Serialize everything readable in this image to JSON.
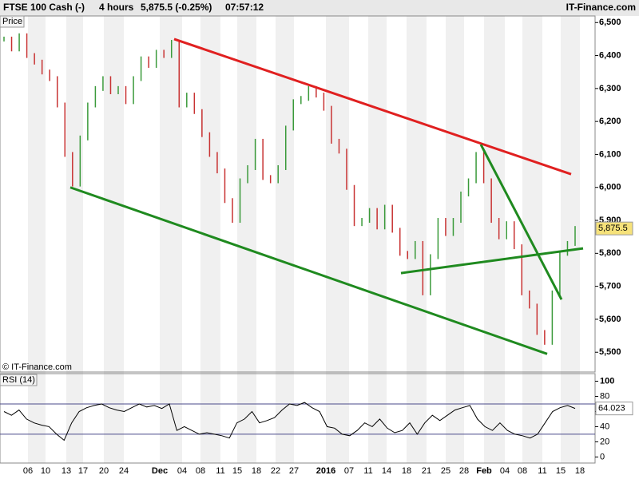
{
  "header": {
    "instrument": "FTSE 100 Cash (-)",
    "period": "4 hours",
    "quote": "5,875.5 (-0.25%)",
    "time": "07:57:12",
    "site": "IT-Finance.com"
  },
  "chart_data": [
    {
      "type": "bar",
      "title": "Price",
      "copyright": "© IT-Finance.com",
      "values": [
        6450,
        6420,
        6460,
        6400,
        6380,
        6350,
        6330,
        6250,
        6100,
        6010,
        6150,
        6250,
        6300,
        6330,
        6290,
        6300,
        6260,
        6330,
        6390,
        6370,
        6410,
        6400,
        6440,
        6250,
        6280,
        6230,
        6160,
        6100,
        6050,
        5960,
        5900,
        6020,
        6060,
        6140,
        6030,
        6020,
        6060,
        6180,
        6260,
        6270,
        6300,
        6280,
        6240,
        6140,
        6110,
        6000,
        5890,
        5900,
        5930,
        5880,
        5940,
        5870,
        5800,
        5790,
        5830,
        5680,
        5790,
        5900,
        5860,
        5900,
        5980,
        6020,
        6100,
        6020,
        5900,
        5850,
        5890,
        5820,
        5680,
        5640,
        5560,
        5530,
        5680,
        5800,
        5830,
        5875.5
      ],
      "up_color": "#3a9a3a",
      "down_color": "#c83232",
      "last": {
        "value": 5875.5,
        "label": "5,875.5"
      },
      "ylim": [
        5440,
        6520
      ],
      "yticks": [
        {
          "value": 5500,
          "label": "5,500"
        },
        {
          "value": 5600,
          "label": "5,600"
        },
        {
          "value": 5700,
          "label": "5,700"
        },
        {
          "value": 5800,
          "label": "5,800"
        },
        {
          "value": 5900,
          "label": "5,900"
        },
        {
          "value": 6000,
          "label": "6,000"
        },
        {
          "value": 6100,
          "label": "6,100"
        },
        {
          "value": 6200,
          "label": "6,200"
        },
        {
          "value": 6300,
          "label": "6,300"
        },
        {
          "value": 6400,
          "label": "6,400"
        },
        {
          "value": 6500,
          "label": "6,500"
        }
      ],
      "trendlines": [
        {
          "color": "#e02020",
          "values": [
            6450,
            6040
          ]
        },
        {
          "color": "#1f8a1f",
          "values": [
            6000,
            5495
          ]
        },
        {
          "color": "#1f8a1f",
          "values": [
            5740,
            5815
          ]
        },
        {
          "color": "#1f8a1f",
          "values": [
            6130,
            5660
          ]
        }
      ],
      "x_labels": [
        "06",
        "10",
        "13",
        "17",
        "20",
        "24",
        "Dec",
        "04",
        "08",
        "11",
        "15",
        "18",
        "22",
        "27",
        "2016",
        "07",
        "11",
        "14",
        "18",
        "21",
        "25",
        "28",
        "Feb",
        "04",
        "08",
        "11",
        "15",
        "18"
      ]
    },
    {
      "type": "line",
      "title": "RSI (14)",
      "color": "#000000",
      "values": [
        60,
        55,
        62,
        50,
        45,
        42,
        40,
        30,
        22,
        45,
        60,
        65,
        68,
        70,
        65,
        62,
        60,
        65,
        70,
        66,
        68,
        64,
        70,
        35,
        40,
        35,
        30,
        32,
        30,
        28,
        25,
        45,
        50,
        60,
        45,
        48,
        52,
        62,
        70,
        68,
        72,
        65,
        60,
        40,
        38,
        30,
        28,
        35,
        45,
        40,
        50,
        38,
        32,
        35,
        45,
        30,
        45,
        55,
        48,
        55,
        62,
        65,
        68,
        50,
        40,
        35,
        45,
        35,
        30,
        28,
        25,
        30,
        45,
        60,
        65,
        68,
        64.023
      ],
      "last": 64.023,
      "levels": [
        30,
        70
      ],
      "ylim": [
        -8,
        110
      ],
      "yticks": [
        0,
        20,
        40,
        60,
        80,
        100
      ]
    }
  ]
}
